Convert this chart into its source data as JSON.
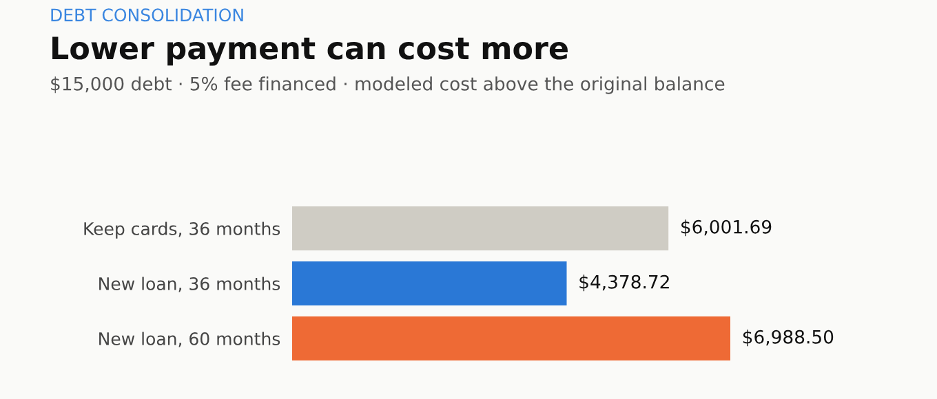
{
  "chart_data": {
    "type": "bar",
    "orientation": "horizontal",
    "title": "Lower payment can cost more",
    "subtitle": "$15,000 debt · 5% fee financed · modeled cost above the original balance",
    "annotations": [
      "DEBT CONSOLIDATION"
    ],
    "categories": [
      "Keep cards, 36 months",
      "New loan, 36 months",
      "New loan, 60 months"
    ],
    "values": [
      6001.69,
      4378.72,
      6988.5
    ],
    "colors": [
      "#cfccc4",
      "#2a78d6",
      "#ee6a35"
    ],
    "value_labels": [
      "$6,001.69",
      "$4,378.72",
      "$6,988.50"
    ],
    "grid": false,
    "legend": false
  }
}
